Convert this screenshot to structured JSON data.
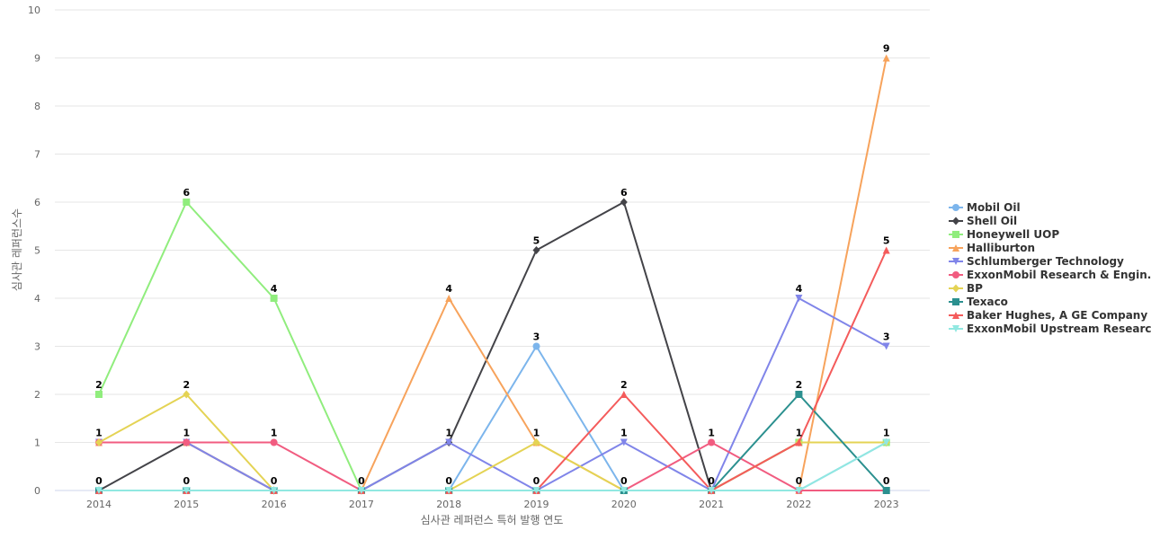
{
  "chart_data": {
    "type": "line",
    "title": "",
    "xlabel": "심사관 레퍼런스 특허 발행 연도",
    "ylabel": "심사관 레퍼런스수",
    "categories": [
      "2014",
      "2015",
      "2016",
      "2017",
      "2018",
      "2019",
      "2020",
      "2021",
      "2022",
      "2023"
    ],
    "ylim": [
      0,
      10
    ],
    "yticks": [
      0,
      1,
      2,
      3,
      4,
      5,
      6,
      7,
      8,
      9,
      10
    ],
    "grid": true,
    "legend_position": "right",
    "series": [
      {
        "name": "Mobil Oil",
        "color": "#7cb5ec",
        "marker": "circle",
        "values": [
          0,
          0,
          0,
          0,
          0,
          3,
          0,
          0,
          0,
          1
        ]
      },
      {
        "name": "Shell Oil",
        "color": "#434348",
        "marker": "diamond",
        "values": [
          0,
          1,
          0,
          0,
          1,
          5,
          6,
          0,
          1,
          1
        ]
      },
      {
        "name": "Honeywell UOP",
        "color": "#90ed7d",
        "marker": "square",
        "values": [
          2,
          6,
          4,
          0,
          0,
          0,
          0,
          0,
          1,
          1
        ]
      },
      {
        "name": "Halliburton",
        "color": "#f7a35c",
        "marker": "triangle",
        "values": [
          1,
          1,
          0,
          0,
          4,
          1,
          0,
          0,
          0,
          9
        ]
      },
      {
        "name": "Schlumberger Technology",
        "color": "#8085e9",
        "marker": "triangle-down",
        "values": [
          1,
          1,
          0,
          0,
          1,
          0,
          1,
          0,
          4,
          3
        ]
      },
      {
        "name": "ExxonMobil Research & Engin...",
        "color": "#f15c80",
        "marker": "circle",
        "values": [
          1,
          1,
          1,
          0,
          0,
          0,
          0,
          1,
          0,
          0
        ]
      },
      {
        "name": "BP",
        "color": "#e4d354",
        "marker": "diamond",
        "values": [
          1,
          2,
          0,
          0,
          0,
          1,
          0,
          0,
          1,
          1
        ]
      },
      {
        "name": "Texaco",
        "color": "#2b908f",
        "marker": "square",
        "values": [
          0,
          0,
          0,
          0,
          0,
          0,
          0,
          0,
          2,
          0
        ]
      },
      {
        "name": "Baker Hughes, A GE Company ...",
        "color": "#f45b5b",
        "marker": "triangle",
        "values": [
          0,
          0,
          0,
          0,
          0,
          0,
          2,
          0,
          1,
          5
        ]
      },
      {
        "name": "ExxonMobil Upstream Researc...",
        "color": "#91e8e1",
        "marker": "triangle-down",
        "values": [
          0,
          0,
          0,
          0,
          0,
          0,
          0,
          0,
          0,
          1
        ]
      }
    ],
    "data_labels": [
      {
        "category": "2014",
        "value": 2,
        "text": "2"
      },
      {
        "category": "2014",
        "value": 1,
        "text": "1"
      },
      {
        "category": "2014",
        "value": 0,
        "text": "0"
      },
      {
        "category": "2015",
        "value": 6,
        "text": "6"
      },
      {
        "category": "2015",
        "value": 2,
        "text": "2"
      },
      {
        "category": "2015",
        "value": 1,
        "text": "1"
      },
      {
        "category": "2015",
        "value": 0,
        "text": "0"
      },
      {
        "category": "2016",
        "value": 4,
        "text": "4"
      },
      {
        "category": "2016",
        "value": 1,
        "text": "1"
      },
      {
        "category": "2016",
        "value": 0,
        "text": "0"
      },
      {
        "category": "2017",
        "value": 0,
        "text": "0"
      },
      {
        "category": "2018",
        "value": 4,
        "text": "4"
      },
      {
        "category": "2018",
        "value": 1,
        "text": "1"
      },
      {
        "category": "2018",
        "value": 0,
        "text": "0"
      },
      {
        "category": "2019",
        "value": 5,
        "text": "5"
      },
      {
        "category": "2019",
        "value": 3,
        "text": "3"
      },
      {
        "category": "2019",
        "value": 1,
        "text": "1"
      },
      {
        "category": "2019",
        "value": 0,
        "text": "0"
      },
      {
        "category": "2020",
        "value": 6,
        "text": "6"
      },
      {
        "category": "2020",
        "value": 2,
        "text": "2"
      },
      {
        "category": "2020",
        "value": 1,
        "text": "1"
      },
      {
        "category": "2020",
        "value": 0,
        "text": "0"
      },
      {
        "category": "2021",
        "value": 1,
        "text": "1"
      },
      {
        "category": "2021",
        "value": 0,
        "text": "0"
      },
      {
        "category": "2022",
        "value": 4,
        "text": "4"
      },
      {
        "category": "2022",
        "value": 2,
        "text": "2"
      },
      {
        "category": "2022",
        "value": 1,
        "text": "1"
      },
      {
        "category": "2022",
        "value": 0,
        "text": "0"
      },
      {
        "category": "2023",
        "value": 9,
        "text": "9"
      },
      {
        "category": "2023",
        "value": 5,
        "text": "5"
      },
      {
        "category": "2023",
        "value": 3,
        "text": "3"
      },
      {
        "category": "2023",
        "value": 1,
        "text": "1"
      },
      {
        "category": "2023",
        "value": 0,
        "text": "0"
      }
    ]
  }
}
